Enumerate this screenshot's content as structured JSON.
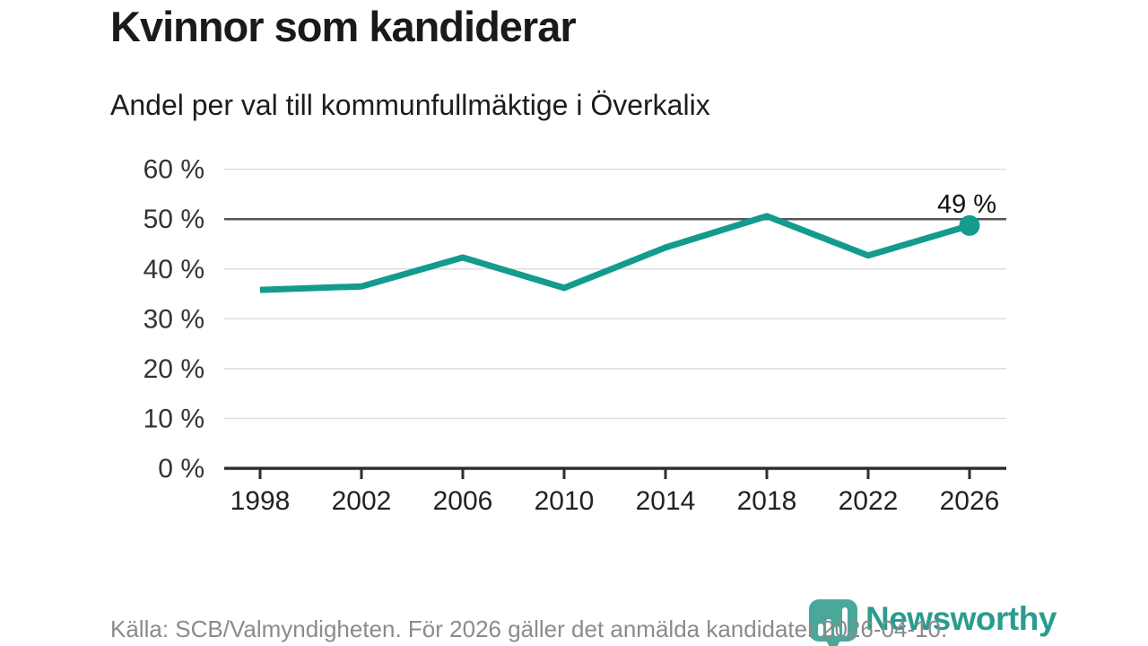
{
  "header": {
    "title": "Kvinnor som kandiderar",
    "subtitle": "Andel per val till kommunfullmäktige i Överkalix"
  },
  "chart_data": {
    "type": "line",
    "title": "Kvinnor som kandiderar",
    "subtitle": "Andel per val till kommunfullmäktige i Överkalix",
    "categories": [
      "1998",
      "2002",
      "2006",
      "2010",
      "2014",
      "2018",
      "2022",
      "2026"
    ],
    "values": [
      35.8,
      36.5,
      42.3,
      36.2,
      44.3,
      50.6,
      42.7,
      48.7
    ],
    "unit": "%",
    "xlabel": "",
    "ylabel": "",
    "ylim": [
      0,
      60
    ],
    "ytick_step": 10,
    "ytick_suffix": " %",
    "grid": true,
    "highlight_gridline": 50,
    "last_point_label": "49 %",
    "legend": "none"
  },
  "footer": {
    "source": "Källa: SCB/Valmyndigheten. För 2026 gäller det anmälda kandidater 2026-04-10.",
    "brand": "Newsworthy"
  },
  "colors": {
    "line": "#139b8d",
    "axis": "#2e2e2e",
    "grid_light": "#dddddd",
    "grid_dark": "#555555",
    "tick_label": "#333333",
    "annotation": "#111111",
    "title": "#1a1a1a",
    "source_text": "#8b8b8b",
    "logo_icon": "#4aa89b",
    "logo_text": "#2a9c8e"
  }
}
